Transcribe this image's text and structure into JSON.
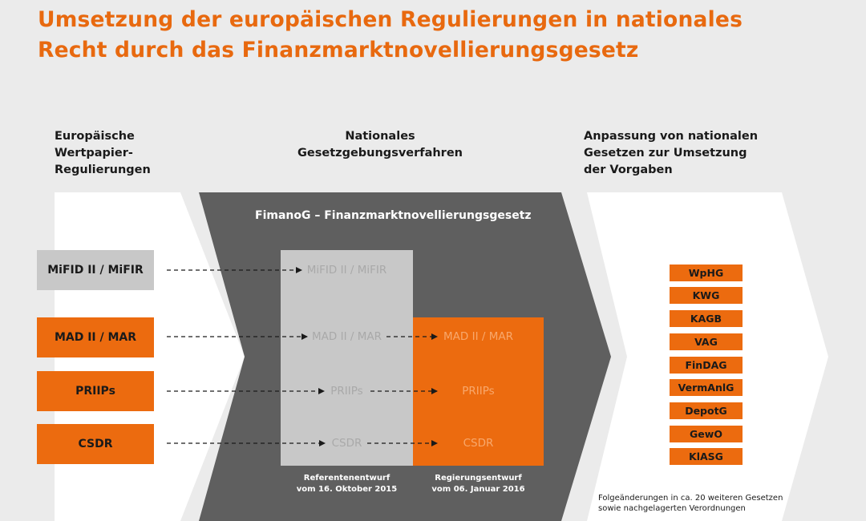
{
  "title": {
    "line1": "Umsetzung der europäischen Regulierungen in nationales",
    "line2": "Recht durch das Finanzmarktnovellierungsgesetz"
  },
  "columns": {
    "left": [
      "Europäische",
      "Wertpapier-",
      "Regulierungen"
    ],
    "middle": [
      "Nationales",
      "Gesetzgebungsverfahren"
    ],
    "right": [
      "Anpassung von nationalen",
      "Gesetzen zur Umsetzung",
      "der Vorgaben"
    ]
  },
  "regulations": [
    {
      "label": "MiFID II / MiFIR",
      "style": "gray"
    },
    {
      "label": "MAD II / MAR",
      "style": "orange"
    },
    {
      "label": "PRIIPs",
      "style": "orange"
    },
    {
      "label": "CSDR",
      "style": "orange"
    }
  ],
  "fimanog_title": "FimanoG – Finanzmarktnovellierungsgesetz",
  "referentenentwurf": {
    "items": [
      "MiFID II / MiFIR",
      "MAD II / MAR",
      "PRIIPs",
      "CSDR"
    ],
    "caption": [
      "Referentenentwurf",
      "vom 16. Oktober 2015"
    ]
  },
  "regierungsentwurf": {
    "items": [
      "MAD II / MAR",
      "PRIIPs",
      "CSDR"
    ],
    "caption": [
      "Regierungsentwurf",
      "vom 06. Januar 2016"
    ]
  },
  "laws": [
    "WpHG",
    "KWG",
    "KAGB",
    "VAG",
    "FinDAG",
    "VermAnlG",
    "DepotG",
    "GewO",
    "KlASG"
  ],
  "footnote": [
    "Folgeänderungen in ca. 20 weiteren Gesetzen",
    "sowie nachgelagerten Verordnungen"
  ],
  "colors": {
    "orange": "#ec6b0f",
    "title_orange": "#e8690f",
    "dark_chevron": "#5f5f5f",
    "light_panel": "#c8c8c8",
    "background": "#ebebeb"
  }
}
